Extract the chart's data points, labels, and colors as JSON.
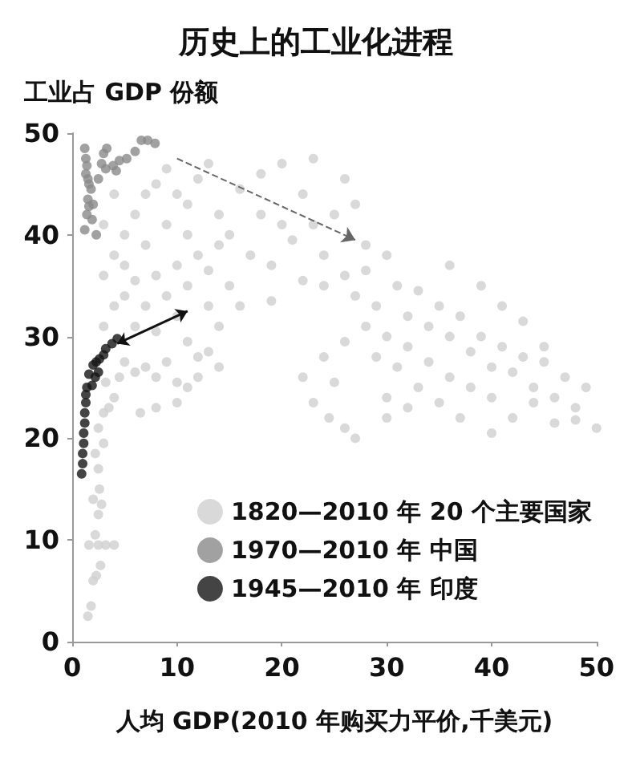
{
  "chart_data": {
    "type": "scatter",
    "title": "历史上的工业化进程",
    "ylabel": "工业占 GDP 份额",
    "xlabel": "人均 GDP(2010 年购买力平价,千美元)",
    "xlim": [
      0,
      50
    ],
    "ylim": [
      0,
      50
    ],
    "xticks": [
      0,
      10,
      20,
      30,
      40,
      50
    ],
    "yticks": [
      0,
      10,
      20,
      30,
      40,
      50
    ],
    "grid": false,
    "legend": "bottom right",
    "marker": "circle",
    "series": [
      {
        "name": "1820—2010 年 20 个主要国家",
        "color": "#cfcfcf",
        "x": [
          1.5,
          1.8,
          2,
          2.3,
          2.7,
          1.6,
          2.5,
          3.2,
          4,
          2.2,
          2.5,
          2.8,
          2.6,
          2,
          2.5,
          2.2,
          3,
          2.5,
          3,
          3.5,
          4,
          3.2,
          4.5,
          5,
          6,
          7,
          8,
          9,
          10,
          11,
          12,
          8,
          6.5,
          10,
          12,
          11,
          13,
          14,
          3,
          4,
          5,
          6,
          7,
          8,
          9,
          10,
          11,
          12,
          13,
          14,
          3,
          4,
          5,
          6,
          7,
          8,
          9,
          10,
          11,
          12,
          13,
          14,
          15,
          5,
          7,
          9,
          11,
          13,
          6,
          8,
          10,
          14,
          15,
          4,
          3,
          16,
          18,
          20,
          17,
          19,
          21,
          22,
          23,
          24,
          25,
          26,
          27,
          28,
          18,
          20,
          22,
          24,
          16,
          19,
          23,
          26,
          27,
          28,
          29,
          30,
          31,
          32,
          33,
          34,
          35,
          36,
          37,
          38,
          39,
          40,
          41,
          42,
          43,
          44,
          45,
          46,
          47,
          48,
          49,
          50,
          46,
          48,
          44,
          42,
          40,
          38,
          36,
          34,
          32,
          30,
          28,
          26,
          24,
          25,
          22,
          23,
          24.5,
          26,
          27,
          30,
          32,
          35,
          37,
          39,
          41,
          43,
          45,
          29,
          31,
          33,
          36,
          30,
          40
        ],
        "values": [
          2.5,
          3.5,
          6,
          6.5,
          7.5,
          9.5,
          9.5,
          9.5,
          9.5,
          10.5,
          12.5,
          13.5,
          15,
          14,
          17,
          18.5,
          19.5,
          21,
          22.5,
          23,
          24,
          25.5,
          26,
          27.5,
          26.5,
          27,
          26,
          27.5,
          25.5,
          25,
          26,
          23,
          22.5,
          23.5,
          28,
          29.5,
          28.5,
          27,
          31,
          33,
          34,
          35.5,
          33,
          36,
          34,
          37,
          35,
          38,
          36.5,
          39,
          36,
          38,
          40,
          42,
          44,
          45,
          46.5,
          44,
          43,
          45.5,
          47,
          42,
          40,
          37,
          39,
          41,
          40,
          33,
          31,
          30.5,
          32,
          31,
          35,
          44,
          41,
          44.5,
          46,
          47,
          38,
          37,
          39.5,
          35.5,
          41,
          38,
          42,
          36,
          43,
          39,
          42,
          41,
          44,
          35,
          33,
          33.5,
          47.5,
          45.5,
          34,
          36.5,
          33,
          38,
          35,
          32,
          34.5,
          31,
          33,
          30,
          32,
          28.5,
          30,
          27,
          29,
          26.5,
          28,
          25,
          27.5,
          24,
          26,
          23,
          25,
          21,
          21.5,
          21.8,
          23.5,
          22,
          24,
          25,
          26,
          27.5,
          29,
          30,
          31,
          29.5,
          28,
          25.5,
          26,
          23.5,
          22,
          21,
          20,
          24,
          23,
          23.5,
          22,
          35,
          33,
          31.5,
          29,
          28,
          27,
          25,
          37,
          22,
          20.5
        ]
      },
      {
        "name": "1970—2010 年 中国",
        "color": "#8a8a8a",
        "x": [
          1.2,
          1.3,
          1.4,
          1.3,
          1.5,
          1.6,
          1.8,
          1.5,
          1.6,
          1.4,
          1.9,
          1.2,
          2.3,
          2,
          2.8,
          3,
          3.3,
          3.2,
          3.9,
          4.2,
          4.5,
          5.2,
          6,
          6.6,
          7.2,
          7.9,
          2.5
        ],
        "values": [
          48.5,
          47.5,
          46.8,
          46,
          45.5,
          45,
          44.5,
          43.5,
          42.8,
          42,
          41.5,
          40.5,
          40,
          43,
          47,
          48,
          48.5,
          46.5,
          46.8,
          46.3,
          47.3,
          47.5,
          48.2,
          49.3,
          49.3,
          49,
          45.5
        ]
      },
      {
        "name": "1945—2010 年 印度",
        "color": "#151515",
        "x": [
          0.9,
          1,
          1,
          1.1,
          1.1,
          1.2,
          1.2,
          1.3,
          1.3,
          1.4,
          1.6,
          2,
          2.2,
          2.3,
          2.6,
          3,
          3.2,
          3.8,
          4.3,
          1.9,
          2.5
        ],
        "values": [
          16.5,
          17.5,
          18.5,
          19.5,
          20.5,
          21.5,
          22.5,
          23.5,
          24.3,
          25,
          26.3,
          27.2,
          26,
          27.5,
          27.8,
          28.2,
          28.8,
          29.3,
          29.8,
          25.2,
          26.5
        ]
      }
    ]
  }
}
